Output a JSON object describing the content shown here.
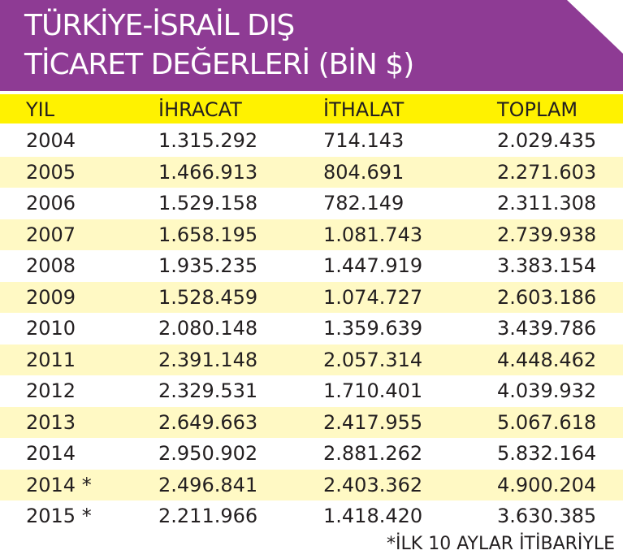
{
  "title": {
    "line1": "TÜRKİYE-İSRAİL DIŞ",
    "line2": "TİCARET DEĞERLERİ (BİN $)"
  },
  "columns": [
    "YIL",
    "İHRACAT",
    "İTHALAT",
    "TOPLAM"
  ],
  "rows": [
    [
      "2004",
      "1.315.292",
      "714.143",
      "2.029.435"
    ],
    [
      "2005",
      "1.466.913",
      "804.691",
      "2.271.603"
    ],
    [
      "2006",
      "1.529.158",
      "782.149",
      "2.311.308"
    ],
    [
      "2007",
      "1.658.195",
      "1.081.743",
      "2.739.938"
    ],
    [
      "2008",
      "1.935.235",
      "1.447.919",
      "3.383.154"
    ],
    [
      "2009",
      "1.528.459",
      "1.074.727",
      "2.603.186"
    ],
    [
      "2010",
      "2.080.148",
      "1.359.639",
      "3.439.786"
    ],
    [
      "2011",
      "2.391.148",
      "2.057.314",
      "4.448.462"
    ],
    [
      "2012",
      "2.329.531",
      "1.710.401",
      "4.039.932"
    ],
    [
      "2013",
      "2.649.663",
      "2.417.955",
      "5.067.618"
    ],
    [
      "2014",
      "2.950.902",
      "2.881.262",
      "5.832.164"
    ],
    [
      "2014 *",
      "2.496.841",
      "2.403.362",
      "4.900.204"
    ],
    [
      "2015 *",
      "2.211.966",
      "1.418.420",
      "3.630.385"
    ]
  ],
  "footnote": "*İLK 10 AYLAR İTİBARİYLE",
  "colors": {
    "header_bg": "#8e3b94",
    "column_header_bg": "#fff200",
    "alt_row_bg": "#fff9c4",
    "text": "#231f20"
  }
}
